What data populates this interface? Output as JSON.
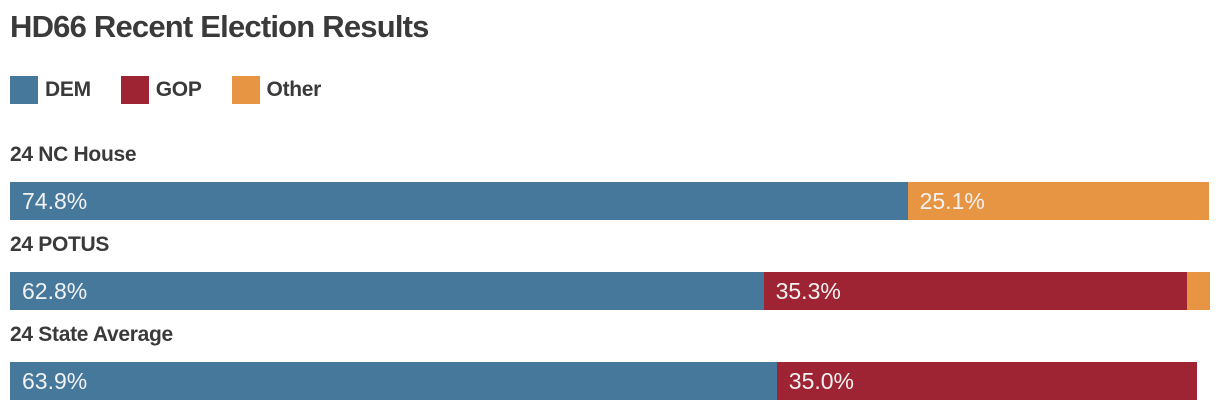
{
  "title": "HD66 Recent Election Results",
  "colors": {
    "dem": "#45789B",
    "gop": "#9F2433",
    "other": "#E79542",
    "heading_text": "#3A3A3A",
    "value_label_text": "#F2F2F2",
    "background": "#FFFFFF"
  },
  "legend": [
    {
      "key": "dem",
      "label": "DEM"
    },
    {
      "key": "gop",
      "label": "GOP"
    },
    {
      "key": "other",
      "label": "Other"
    }
  ],
  "chart_data": {
    "type": "bar",
    "orientation": "horizontal-stacked",
    "title": "HD66 Recent Election Results",
    "xlabel": "",
    "ylabel": "",
    "xlim": [
      0,
      100
    ],
    "unit": "%",
    "grid": false,
    "legend_position": "top",
    "categories": [
      "24 NC House",
      "24 POTUS",
      "24 State Average"
    ],
    "rows": [
      {
        "label": "24 NC House",
        "segments": [
          {
            "party": "dem",
            "value": 74.8,
            "display": "74.8%"
          },
          {
            "party": "other",
            "value": 25.1,
            "display": "25.1%"
          }
        ]
      },
      {
        "label": "24 POTUS",
        "segments": [
          {
            "party": "dem",
            "value": 62.8,
            "display": "62.8%"
          },
          {
            "party": "gop",
            "value": 35.3,
            "display": "35.3%"
          },
          {
            "party": "other",
            "value": 1.9,
            "display": ""
          }
        ]
      },
      {
        "label": "24 State Average",
        "segments": [
          {
            "party": "dem",
            "value": 63.9,
            "display": "63.9%"
          },
          {
            "party": "gop",
            "value": 35.0,
            "display": "35.0%"
          }
        ]
      }
    ]
  }
}
